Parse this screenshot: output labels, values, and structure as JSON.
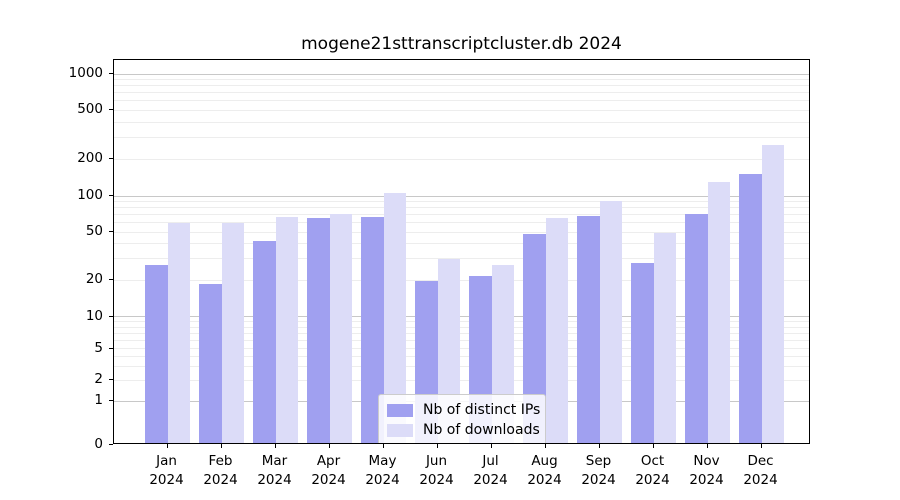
{
  "chart_data": {
    "type": "bar",
    "title": "mogene21sttranscriptcluster.db 2024",
    "categories": [
      "Jan",
      "Feb",
      "Mar",
      "Apr",
      "May",
      "Jun",
      "Jul",
      "Aug",
      "Sep",
      "Oct",
      "Nov",
      "Dec"
    ],
    "category_year": "2024",
    "series": [
      {
        "name": "Nb of distinct IPs",
        "color": "#a0a0f0",
        "values": [
          26,
          18,
          41,
          63,
          64,
          19,
          21,
          46,
          66,
          27,
          68,
          146
        ]
      },
      {
        "name": "Nb of downloads",
        "color": "#dcdcf8",
        "values": [
          57,
          57,
          64,
          68,
          102,
          29,
          26,
          63,
          87,
          47,
          125,
          253
        ]
      }
    ],
    "yscale": "symlog",
    "yticks": [
      0,
      1,
      2,
      5,
      10,
      20,
      50,
      100,
      200,
      500,
      1000
    ],
    "ylim": [
      0,
      1500
    ],
    "grid": true,
    "grid_major_color": "#c8c8c8",
    "grid_minor_color": "#ededed",
    "legend_position": "lower-center",
    "xlabel": "",
    "ylabel": ""
  }
}
